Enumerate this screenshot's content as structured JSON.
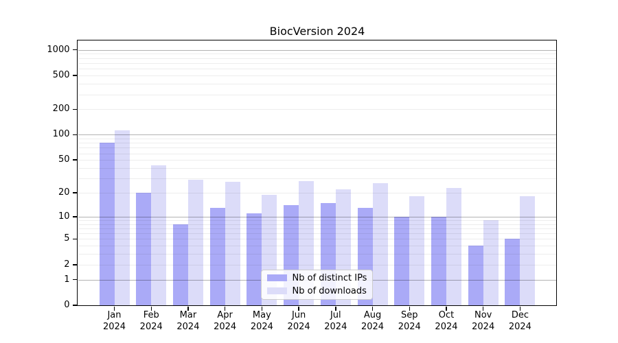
{
  "figure": {
    "title": "BiocVersion 2024"
  },
  "chart_data": {
    "type": "bar",
    "title": "BiocVersion 2024",
    "xlabel": "",
    "ylabel": "",
    "categories": [
      "Jan 2024",
      "Feb 2024",
      "Mar 2024",
      "Apr 2024",
      "May 2024",
      "Jun 2024",
      "Jul 2024",
      "Aug 2024",
      "Sep 2024",
      "Oct 2024",
      "Nov 2024",
      "Dec 2024"
    ],
    "series": [
      {
        "name": "Nb of distinct IPs",
        "color": "#aaaaf7",
        "values": [
          80,
          20,
          8,
          13,
          11,
          14,
          15,
          13,
          10,
          10,
          4,
          5
        ]
      },
      {
        "name": "Nb of downloads",
        "color": "#dcdcf9",
        "values": [
          112,
          43,
          29,
          27,
          19,
          28,
          22,
          26,
          18,
          23,
          9,
          18
        ]
      }
    ],
    "yscale": "log1p",
    "ylim": [
      0,
      1280
    ],
    "yticks": [
      0,
      1,
      2,
      5,
      10,
      20,
      50,
      100,
      200,
      500,
      1000
    ],
    "grid": {
      "orientation": "horizontal",
      "major_at": [
        1,
        10,
        100,
        1000
      ],
      "minor": "2-9 per decade"
    },
    "legend": {
      "position": "inside lower center",
      "entries": [
        "Nb of distinct IPs",
        "Nb of downloads"
      ]
    },
    "axis_color": "#000000",
    "major_grid_color": "#b3b3b3",
    "minor_grid_color": "#ededed"
  }
}
